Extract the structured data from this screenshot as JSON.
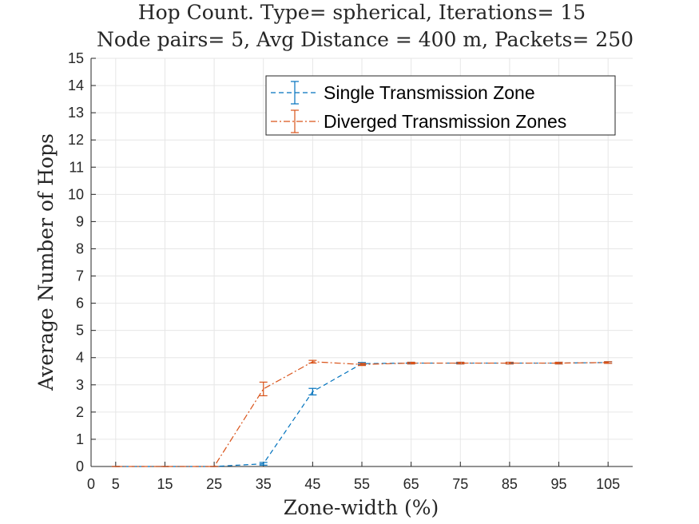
{
  "chart_data": {
    "type": "line",
    "title_lines": [
      "Hop Count. Type= spherical, Iterations= 15",
      "Node pairs= 5, Avg Distance = 400 m, Packets= 250"
    ],
    "xlabel": "Zone-width (%)",
    "ylabel": "Average Number of Hops",
    "xlim": [
      0,
      110
    ],
    "ylim": [
      0,
      15
    ],
    "xticks": [
      0,
      5,
      15,
      25,
      35,
      45,
      55,
      65,
      75,
      85,
      95,
      105
    ],
    "yticks": [
      0,
      1,
      2,
      3,
      4,
      5,
      6,
      7,
      8,
      9,
      10,
      11,
      12,
      13,
      14,
      15
    ],
    "grid": true,
    "legend_position": "top-right",
    "x": [
      5,
      15,
      25,
      35,
      45,
      55,
      65,
      75,
      85,
      95,
      105
    ],
    "series": [
      {
        "name": "Single Transmission Zone",
        "color": "#0072BD",
        "dash": "dashed",
        "values": [
          0,
          0,
          0,
          0.1,
          2.75,
          3.78,
          3.8,
          3.8,
          3.8,
          3.8,
          3.82
        ],
        "errors": [
          0,
          0,
          0,
          0.05,
          0.12,
          0.04,
          0.03,
          0.03,
          0.03,
          0.03,
          0.03
        ]
      },
      {
        "name": "Diverged Transmission Zones",
        "color": "#D95319",
        "dash": "dashdot",
        "values": [
          0,
          0,
          0,
          2.85,
          3.85,
          3.75,
          3.8,
          3.8,
          3.8,
          3.8,
          3.82
        ],
        "errors": [
          0,
          0,
          0,
          0.25,
          0.05,
          0.04,
          0.03,
          0.03,
          0.03,
          0.03,
          0.03
        ]
      }
    ]
  }
}
